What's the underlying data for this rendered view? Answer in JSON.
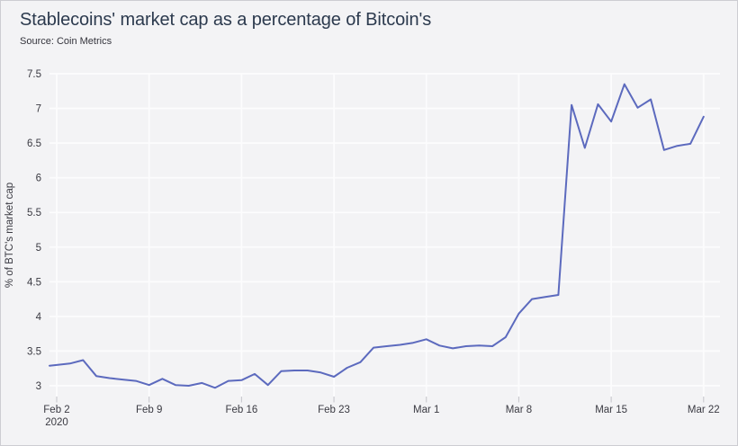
{
  "header": {
    "title": "Stablecoins' market cap as a percentage of Bitcoin's",
    "source": "Source: Coin Metrics"
  },
  "colors": {
    "background": "#f3f3f5",
    "gridline": "#fcfcfd",
    "line": "#5c6abe",
    "title_text": "#2c3a4e",
    "axis_text": "#3a3a42",
    "tick_mark": "#c4c4ca",
    "border": "#cdcdd2"
  },
  "chart_data": {
    "type": "line",
    "title": "Stablecoins' market cap as a percentage of Bitcoin's",
    "source": "Source: Coin Metrics",
    "xlabel": "",
    "ylabel": "% of BTC's market cap",
    "ylim": [
      3,
      7.5
    ],
    "yticks": [
      3,
      3.5,
      4,
      4.5,
      5,
      5.5,
      6,
      6.5,
      7,
      7.5
    ],
    "grid": true,
    "legend": "none",
    "x": [
      "Feb 2",
      "Feb 3",
      "Feb 4",
      "Feb 5",
      "Feb 6",
      "Feb 7",
      "Feb 8",
      "Feb 9",
      "Feb 10",
      "Feb 11",
      "Feb 12",
      "Feb 13",
      "Feb 14",
      "Feb 15",
      "Feb 16",
      "Feb 17",
      "Feb 18",
      "Feb 19",
      "Feb 20",
      "Feb 21",
      "Feb 22",
      "Feb 23",
      "Feb 24",
      "Feb 25",
      "Feb 26",
      "Feb 27",
      "Feb 28",
      "Feb 29",
      "Mar 1",
      "Mar 2",
      "Mar 3",
      "Mar 4",
      "Mar 5",
      "Mar 6",
      "Mar 7",
      "Mar 8",
      "Mar 9",
      "Mar 10",
      "Mar 11",
      "Mar 12",
      "Mar 13",
      "Mar 14",
      "Mar 15",
      "Mar 16",
      "Mar 17",
      "Mar 18",
      "Mar 19",
      "Mar 20",
      "Mar 21",
      "Mar 22"
    ],
    "values": [
      3.3,
      3.32,
      3.37,
      3.14,
      3.11,
      3.09,
      3.07,
      3.01,
      3.1,
      3.01,
      3.0,
      3.04,
      2.97,
      3.07,
      3.08,
      3.17,
      3.01,
      3.21,
      3.22,
      3.22,
      3.19,
      3.13,
      3.26,
      3.34,
      3.55,
      3.57,
      3.59,
      3.62,
      3.67,
      3.58,
      3.54,
      3.57,
      3.58,
      3.57,
      3.7,
      4.04,
      4.25,
      4.28,
      4.31,
      7.05,
      6.43,
      7.06,
      6.81,
      7.35,
      7.01,
      7.13,
      6.4,
      6.46,
      6.49,
      6.88
    ],
    "xtick_labels": [
      "Feb 2",
      "Feb 9",
      "Feb 16",
      "Feb 23",
      "Mar 1",
      "Mar 8",
      "Mar 15",
      "Mar 22"
    ],
    "xtick_indices": [
      0,
      7,
      14,
      21,
      28,
      35,
      42,
      49
    ],
    "first_xtick_sublabel": "2020"
  }
}
